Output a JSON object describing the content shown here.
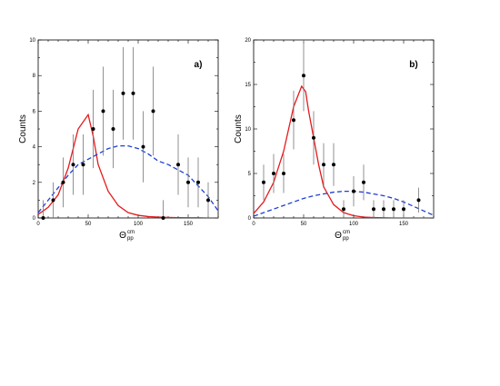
{
  "chart_data": [
    {
      "type": "scatter",
      "panel_label": "a)",
      "xlabel": "Θ",
      "xlabel_sup": "cm",
      "xlabel_sub": "pp",
      "ylabel": "Counts",
      "xlim": [
        0,
        180
      ],
      "ylim": [
        0,
        10
      ],
      "xticks": [
        0,
        50,
        100,
        150
      ],
      "yticks": [
        0,
        2,
        4,
        6,
        8,
        10
      ],
      "grid": false,
      "points": {
        "name": "",
        "color": "#000000",
        "x": [
          5,
          15,
          25,
          35,
          45,
          55,
          65,
          75,
          85,
          95,
          105,
          115,
          125,
          140,
          150,
          160,
          170
        ],
        "y": [
          0,
          1,
          2,
          3,
          3,
          5,
          6,
          5,
          7,
          7,
          4,
          6,
          0,
          3,
          2,
          2,
          1
        ],
        "err": [
          1,
          1,
          1.4,
          1.7,
          1.7,
          2.2,
          2.5,
          2.2,
          2.6,
          2.6,
          2,
          2.5,
          1,
          1.7,
          1.4,
          1.4,
          1
        ]
      },
      "series": [
        {
          "name": "",
          "color": "#e41a1c",
          "style": "solid",
          "x": [
            0,
            10,
            20,
            30,
            40,
            50,
            55,
            60,
            70,
            80,
            90,
            100,
            110,
            120,
            130,
            140,
            150,
            160,
            170,
            180
          ],
          "y": [
            0.2,
            0.6,
            1.3,
            2.8,
            5.0,
            5.8,
            4.6,
            3.0,
            1.5,
            0.7,
            0.3,
            0.15,
            0.08,
            0.05,
            0.03,
            0.02,
            0.01,
            0.01,
            0,
            0
          ]
        },
        {
          "name": "",
          "color": "#1f3fd1",
          "style": "dashed",
          "x": [
            0,
            10,
            20,
            30,
            40,
            50,
            60,
            70,
            80,
            90,
            100,
            110,
            120,
            130,
            140,
            150,
            160,
            170,
            180
          ],
          "y": [
            0.3,
            1.0,
            1.7,
            2.4,
            3.0,
            3.3,
            3.6,
            3.9,
            4.05,
            4.05,
            3.9,
            3.6,
            3.2,
            3.0,
            2.7,
            2.4,
            1.8,
            1.2,
            0.4
          ]
        }
      ]
    },
    {
      "type": "scatter",
      "panel_label": "b)",
      "xlabel": "Θ",
      "xlabel_sup": "cm",
      "xlabel_sub": "pp",
      "ylabel": "Counts",
      "xlim": [
        0,
        180
      ],
      "ylim": [
        0,
        20
      ],
      "xticks": [
        0,
        50,
        100,
        150
      ],
      "yticks": [
        0,
        5,
        10,
        15,
        20
      ],
      "grid": false,
      "points": {
        "name": "",
        "color": "#000000",
        "x": [
          10,
          20,
          30,
          40,
          50,
          60,
          70,
          80,
          90,
          100,
          110,
          120,
          130,
          140,
          150,
          165
        ],
        "y": [
          4,
          5,
          5,
          11,
          16,
          9,
          6,
          6,
          1,
          3,
          4,
          1,
          1,
          1,
          1,
          2
        ],
        "err": [
          2,
          2.2,
          2.2,
          3.3,
          4,
          3,
          2.4,
          2.4,
          1,
          1.7,
          2,
          1,
          1,
          1,
          1,
          1.4
        ]
      },
      "series": [
        {
          "name": "",
          "color": "#e41a1c",
          "style": "solid",
          "x": [
            0,
            10,
            20,
            30,
            40,
            48,
            52,
            55,
            60,
            65,
            70,
            80,
            90,
            100,
            110,
            120,
            130,
            140,
            150,
            160,
            170,
            180
          ],
          "y": [
            0.5,
            1.8,
            4.0,
            7.5,
            12.5,
            14.8,
            14.2,
            12.0,
            9.0,
            6.0,
            3.5,
            1.5,
            0.6,
            0.25,
            0.1,
            0.05,
            0.02,
            0,
            0,
            0,
            0,
            0
          ]
        },
        {
          "name": "",
          "color": "#1f3fd1",
          "style": "dashed",
          "x": [
            0,
            10,
            20,
            30,
            40,
            50,
            60,
            70,
            80,
            90,
            100,
            110,
            120,
            130,
            140,
            150,
            160,
            170,
            180
          ],
          "y": [
            0.2,
            0.6,
            1.0,
            1.4,
            1.8,
            2.2,
            2.5,
            2.7,
            2.9,
            3.0,
            3.0,
            2.9,
            2.7,
            2.5,
            2.2,
            1.8,
            1.3,
            0.8,
            0.3
          ]
        }
      ]
    }
  ]
}
